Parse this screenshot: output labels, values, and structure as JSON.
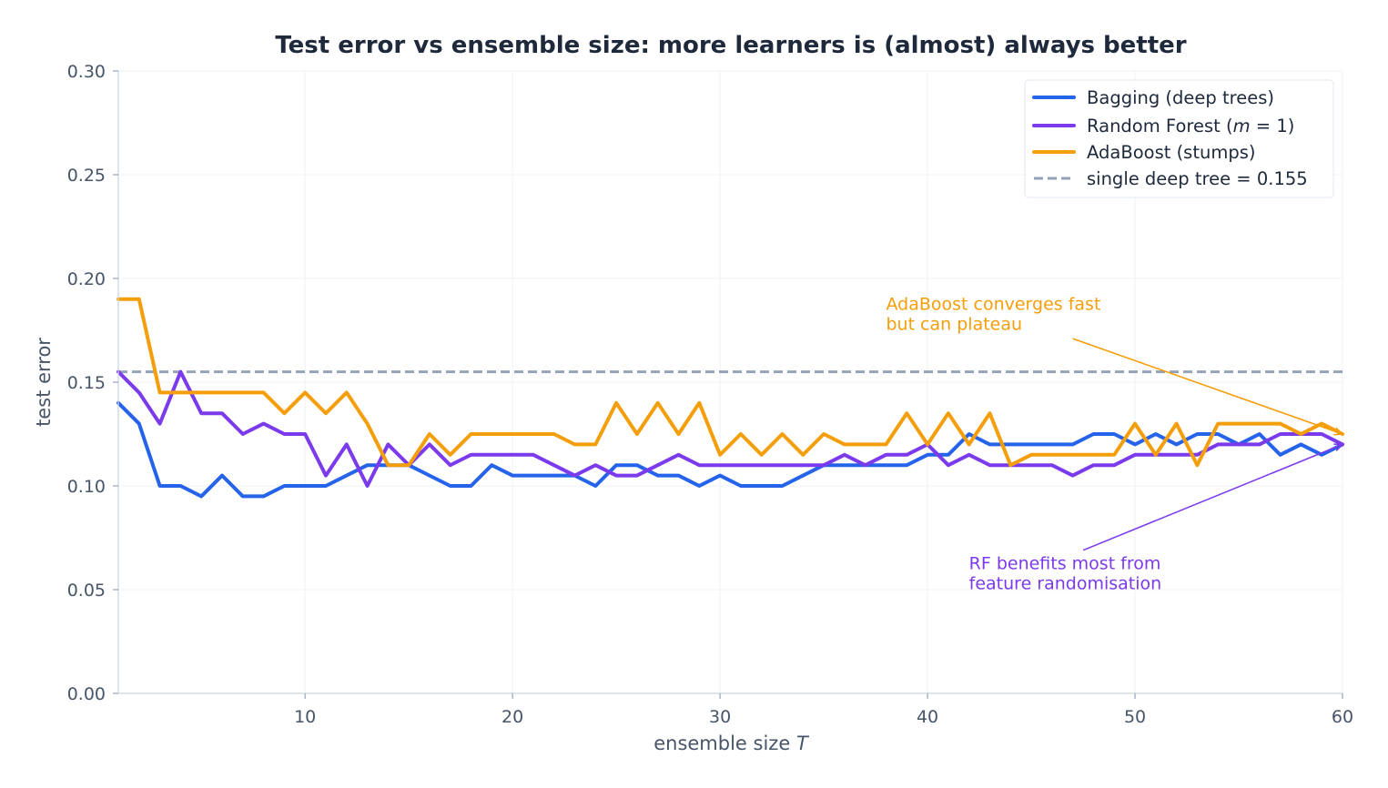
{
  "chart_data": {
    "type": "line",
    "title": "Test error vs ensemble size: more learners is (almost) always better",
    "xlabel": "ensemble size",
    "xlabel_var": "T",
    "ylabel": "test error",
    "xlim": [
      1,
      60
    ],
    "ylim": [
      0,
      0.3
    ],
    "xticks": [
      10,
      20,
      30,
      40,
      50,
      60
    ],
    "xtick_labels": [
      "10",
      "20",
      "30",
      "40",
      "50",
      "60"
    ],
    "yticks": [
      0,
      0.05,
      0.1,
      0.15,
      0.2,
      0.25,
      0.3
    ],
    "ytick_labels": [
      "0.00",
      "0.05",
      "0.10",
      "0.15",
      "0.20",
      "0.25",
      "0.30"
    ],
    "grid": true,
    "legend_position": "top-right",
    "series": [
      {
        "name": "Bagging (deep trees)",
        "color": "#2563eb",
        "values": [
          0.14,
          0.13,
          0.1,
          0.1,
          0.095,
          0.105,
          0.095,
          0.095,
          0.1,
          0.1,
          0.1,
          0.105,
          0.11,
          0.11,
          0.11,
          0.105,
          0.1,
          0.1,
          0.11,
          0.105,
          0.105,
          0.105,
          0.105,
          0.1,
          0.11,
          0.11,
          0.105,
          0.105,
          0.1,
          0.105,
          0.1,
          0.1,
          0.1,
          0.105,
          0.11,
          0.11,
          0.11,
          0.11,
          0.11,
          0.115,
          0.115,
          0.125,
          0.12,
          0.12,
          0.12,
          0.12,
          0.12,
          0.125,
          0.125,
          0.12,
          0.125,
          0.12,
          0.125,
          0.125,
          0.12,
          0.125,
          0.115,
          0.12,
          0.115,
          0.12
        ]
      },
      {
        "name_prefix": "Random Forest (",
        "name_math": "m",
        "name_suffix": " = 1)",
        "color": "#7c3aed",
        "values": [
          0.155,
          0.145,
          0.13,
          0.155,
          0.135,
          0.135,
          0.125,
          0.13,
          0.125,
          0.125,
          0.105,
          0.12,
          0.1,
          0.12,
          0.11,
          0.12,
          0.11,
          0.115,
          0.115,
          0.115,
          0.115,
          0.11,
          0.105,
          0.11,
          0.105,
          0.105,
          0.11,
          0.115,
          0.11,
          0.11,
          0.11,
          0.11,
          0.11,
          0.11,
          0.11,
          0.115,
          0.11,
          0.115,
          0.115,
          0.12,
          0.11,
          0.115,
          0.11,
          0.11,
          0.11,
          0.11,
          0.105,
          0.11,
          0.11,
          0.115,
          0.115,
          0.115,
          0.115,
          0.12,
          0.12,
          0.12,
          0.125,
          0.125,
          0.125,
          0.12
        ]
      },
      {
        "name": "AdaBoost (stumps)",
        "color": "#f59e0b",
        "values": [
          0.19,
          0.19,
          0.145,
          0.145,
          0.145,
          0.145,
          0.145,
          0.145,
          0.135,
          0.145,
          0.135,
          0.145,
          0.13,
          0.11,
          0.11,
          0.125,
          0.115,
          0.125,
          0.125,
          0.125,
          0.125,
          0.125,
          0.12,
          0.12,
          0.14,
          0.125,
          0.14,
          0.125,
          0.14,
          0.115,
          0.125,
          0.115,
          0.125,
          0.115,
          0.125,
          0.12,
          0.12,
          0.12,
          0.135,
          0.12,
          0.135,
          0.12,
          0.135,
          0.11,
          0.115,
          0.115,
          0.115,
          0.115,
          0.115,
          0.13,
          0.115,
          0.13,
          0.11,
          0.13,
          0.13,
          0.13,
          0.13,
          0.125,
          0.13,
          0.125
        ]
      }
    ],
    "reference_line": {
      "name": "single deep tree = 0.155",
      "value": 0.155,
      "color": "#94a3b8",
      "style": "dashed"
    },
    "annotations": [
      {
        "lines": [
          "AdaBoost converges fast",
          "but can plateau"
        ],
        "color": "#f59e0b",
        "text_at": [
          38,
          0.18
        ],
        "arrow_from": [
          47,
          0.171
        ],
        "arrow_to": [
          60,
          0.125
        ]
      },
      {
        "lines": [
          "RF benefits most from",
          "feature randomisation"
        ],
        "color": "#7c3aed",
        "text_at": [
          42,
          0.055
        ],
        "arrow_from": [
          47.5,
          0.069
        ],
        "arrow_to": [
          60,
          0.12
        ]
      }
    ]
  }
}
